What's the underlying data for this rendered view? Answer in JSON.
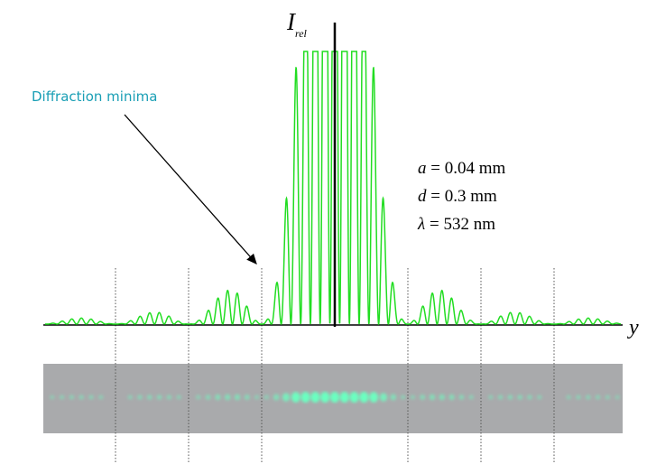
{
  "annotation": "Diffraction minima",
  "vertical_axis": {
    "symbol": "I",
    "subscript": "rel"
  },
  "horizontal_axis": "y",
  "parameters": [
    {
      "symbol": "a",
      "text": "= 0.04 mm"
    },
    {
      "symbol": "d",
      "text": "= 0.3 mm"
    },
    {
      "symbol": "λ",
      "text": "= 532 nm"
    }
  ]
}
